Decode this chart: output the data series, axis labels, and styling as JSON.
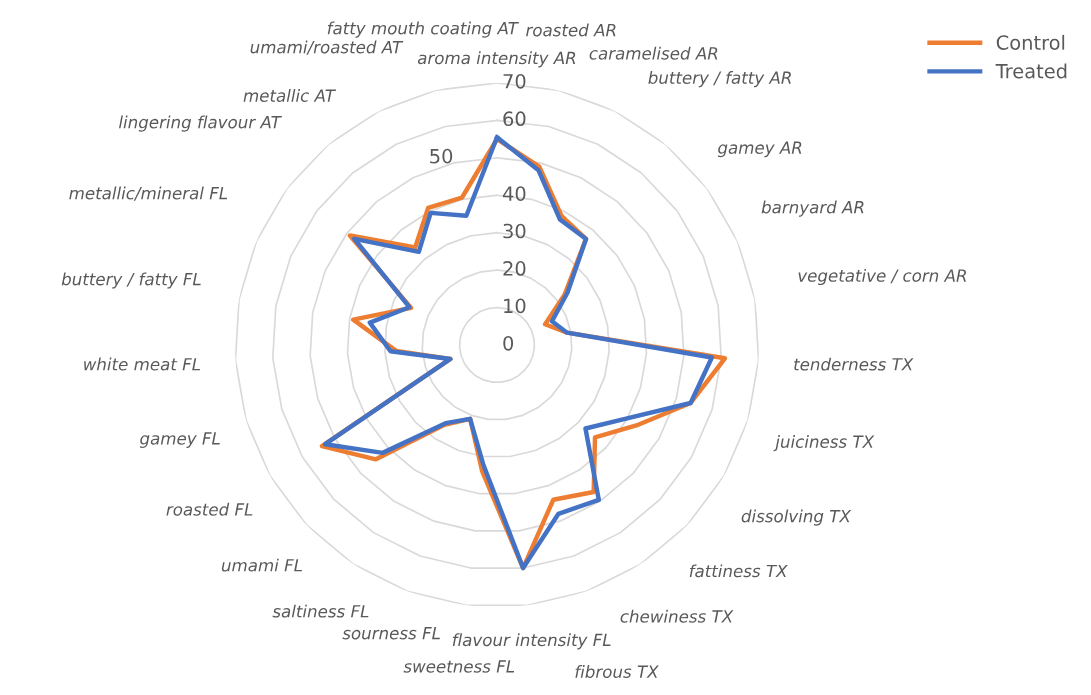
{
  "chart_data": {
    "type": "radar",
    "categories": [
      "aroma intensity AR",
      "roasted AR",
      "caramelised AR",
      "buttery / fatty AR",
      "gamey AR",
      "barnyard AR",
      "vegetative / corn AR",
      "tenderness TX",
      "juiciness TX",
      "dissolving TX",
      "fattiness TX",
      "chewiness TX",
      "fibrous TX",
      "flavour intensity FL",
      "sweetness FL",
      "sourness FL",
      "saltiness FL",
      "umami FL",
      "roasted FL",
      "gamey FL",
      "white meat FL",
      "buttery / fatty FL",
      "metallic/mineral FL",
      "lingering flavour AT",
      "metallic AT",
      "umami/roasted AT",
      "fatty mouth coating AT"
    ],
    "series": [
      {
        "name": "Control",
        "color": "#ed7d31",
        "values": [
          55,
          49,
          38.5,
          37,
          22.5,
          14,
          19,
          61,
          54,
          43,
          36,
          47,
          44,
          60,
          34,
          21,
          25.5,
          44.5,
          54,
          13,
          27,
          39,
          25,
          49,
          34,
          41,
          40.5
        ]
      },
      {
        "name": "Treated",
        "color": "#4472c4",
        "values": [
          55.5,
          48,
          37.5,
          37,
          23.5,
          16,
          19,
          57.5,
          54,
          39.5,
          32.5,
          49.5,
          48,
          60,
          32,
          21,
          25,
          42,
          53,
          13,
          28.5,
          34.5,
          25.5,
          47.5,
          32.5,
          39.5,
          35.5
        ]
      }
    ],
    "ylim": [
      0,
      70
    ],
    "yticks": [
      0,
      10,
      20,
      30,
      40,
      50,
      60,
      70
    ],
    "grid": true,
    "legend": "top right",
    "line_style": "solid",
    "marker": "none"
  }
}
